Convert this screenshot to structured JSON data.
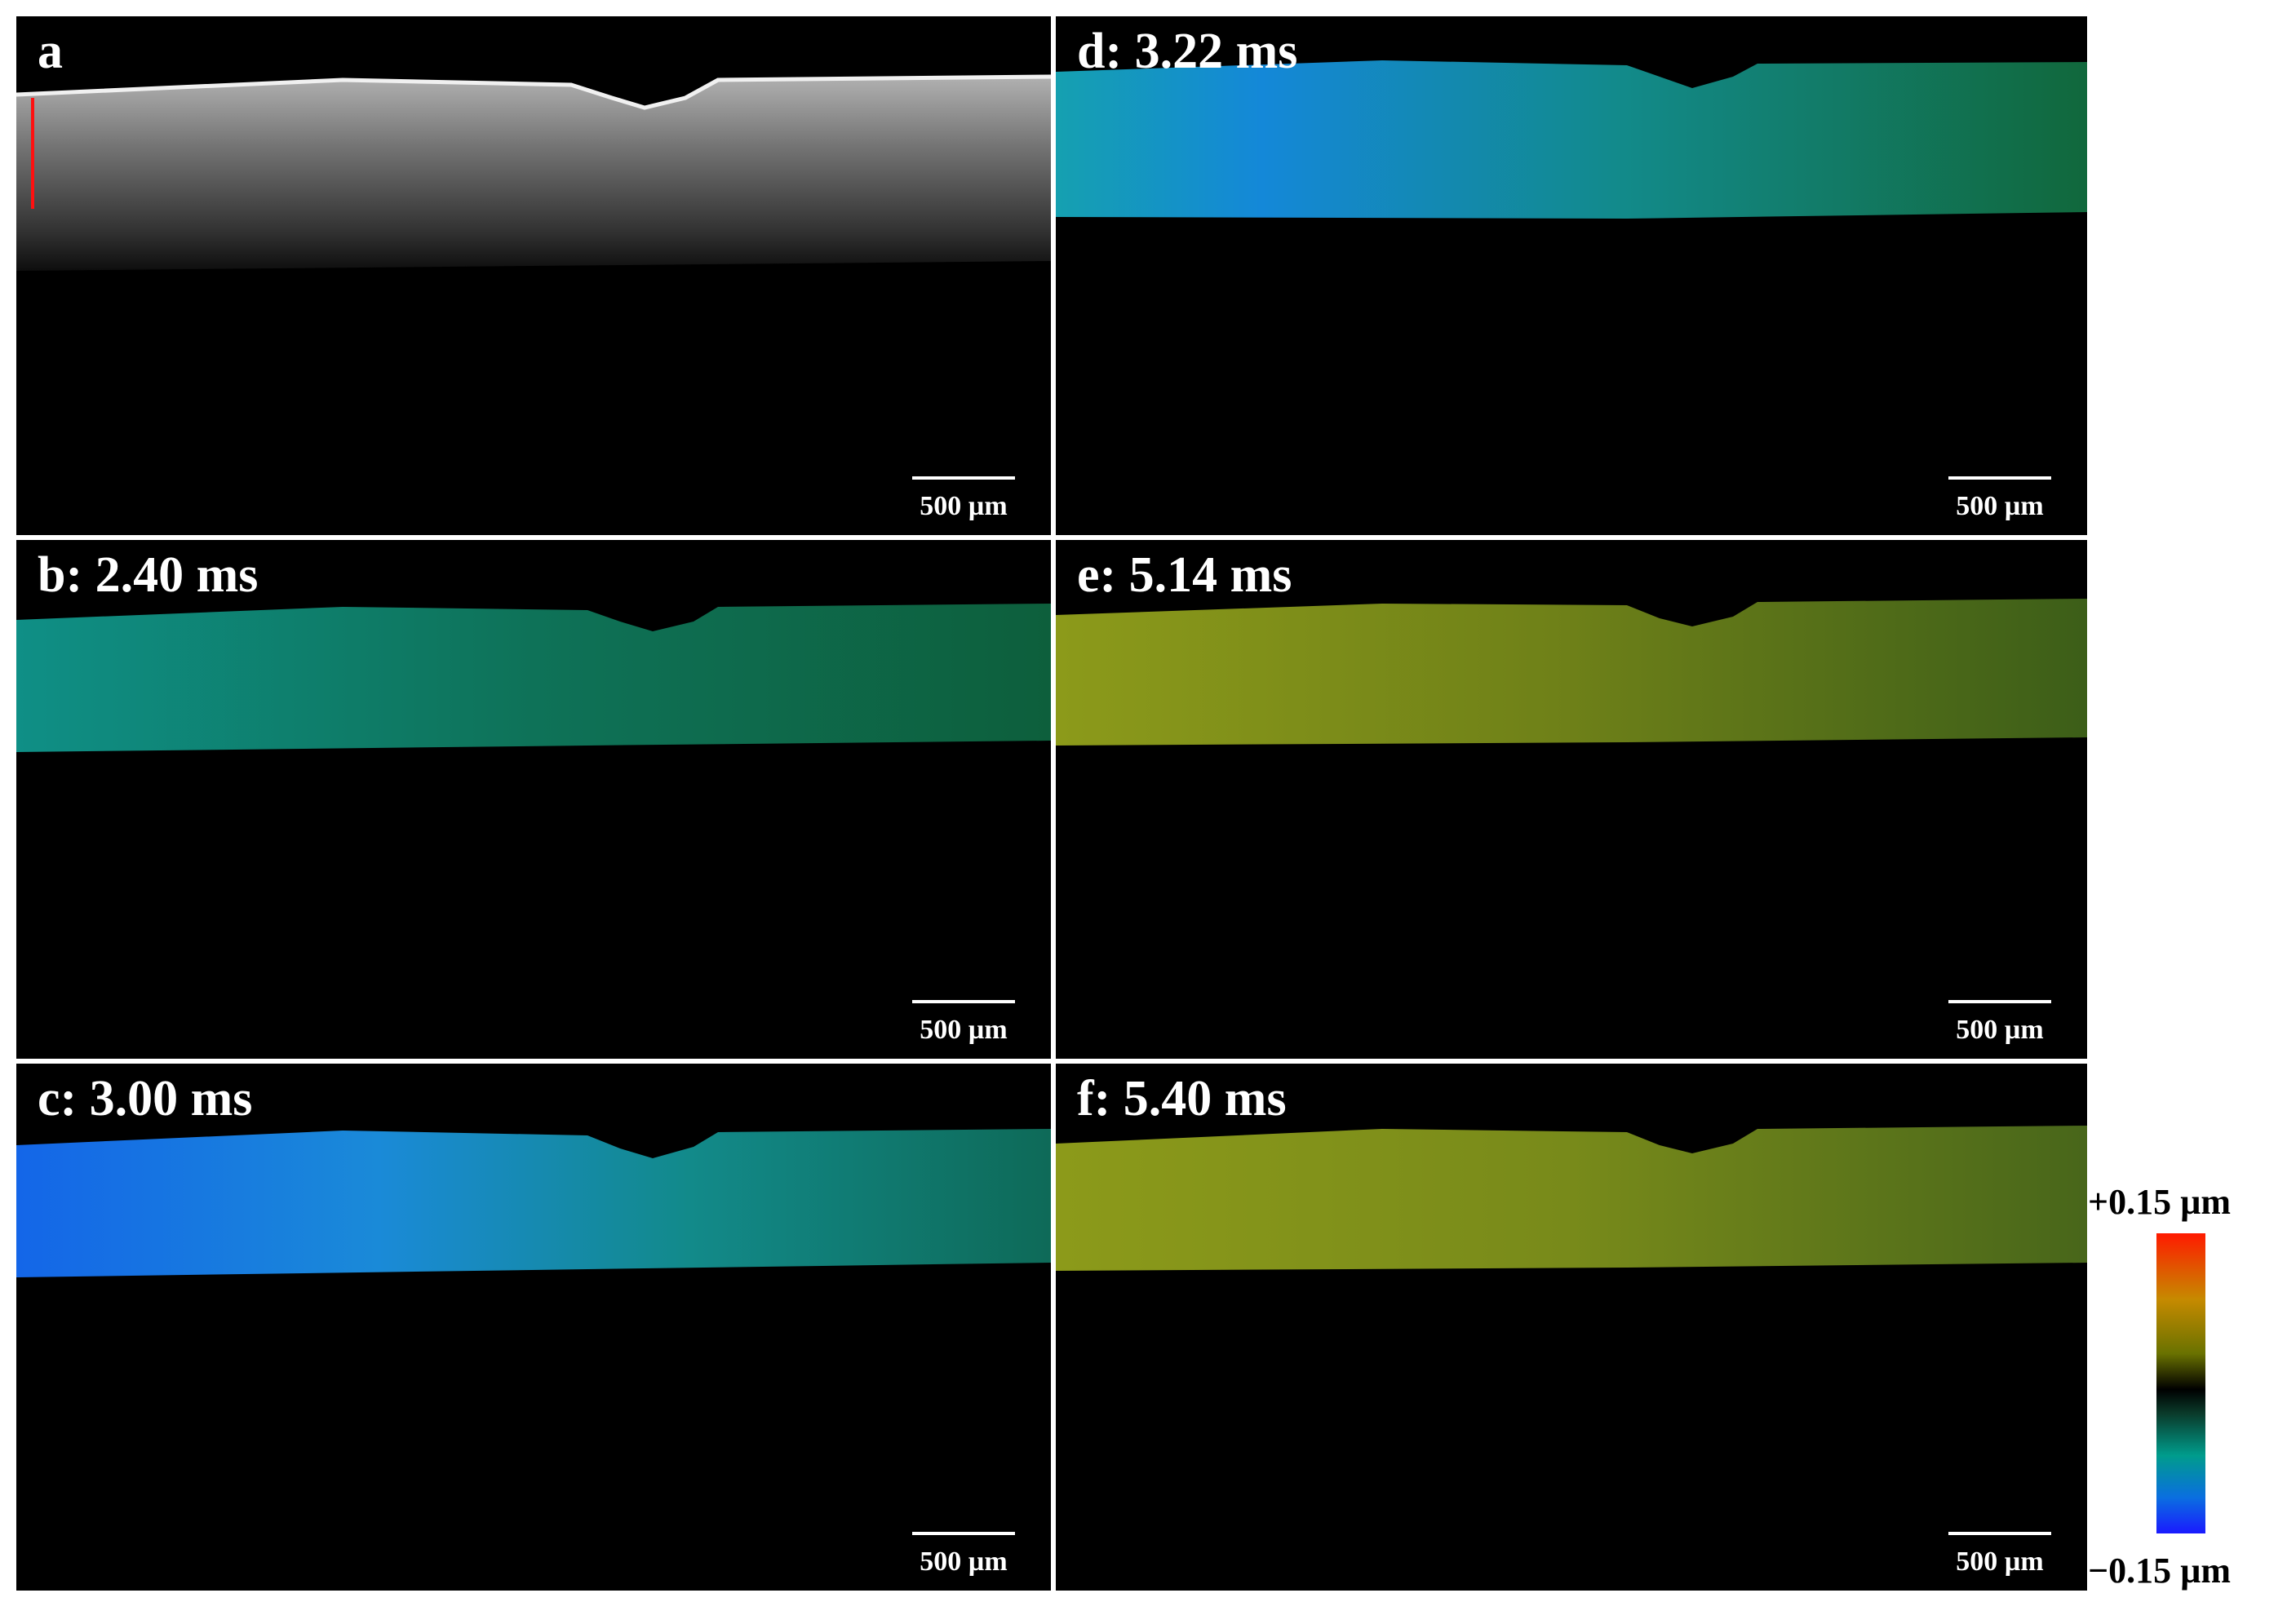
{
  "panels": [
    {
      "id": "a",
      "label": "a",
      "scale_bar": "500 µm",
      "colors": {
        "tissue": "#8a8a8a",
        "surface": "#f0f0f0",
        "marker": "#ff1010"
      }
    },
    {
      "id": "b",
      "label": "b: 2.40 ms",
      "scale_bar": "500 µm",
      "colors": {
        "left": "#0f8f86",
        "right": "#0d5f3c"
      }
    },
    {
      "id": "c",
      "label": "c: 3.00 ms",
      "scale_bar": "500 µm",
      "colors": {
        "left": "#1466e8",
        "right": "#0e6a58"
      }
    },
    {
      "id": "d",
      "label": "d: 3.22 ms",
      "scale_bar": "500 µm",
      "colors": {
        "left": "#1488d8",
        "right": "#11683c"
      }
    },
    {
      "id": "e",
      "label": "e: 5.14 ms",
      "scale_bar": "500 µm",
      "colors": {
        "left": "#8c9a1a",
        "right": "#3c5e18"
      }
    },
    {
      "id": "f",
      "label": "f: 5.40 ms",
      "scale_bar": "500 µm",
      "colors": {
        "left": "#8c9a1a",
        "right": "#48661a"
      }
    }
  ],
  "colorbar": {
    "max_label": "+0.15 µm",
    "min_label": "−0.15 µm",
    "colors": [
      "#ff1a00",
      "#c68a00",
      "#000000",
      "#009c8c",
      "#1a1aff"
    ]
  }
}
